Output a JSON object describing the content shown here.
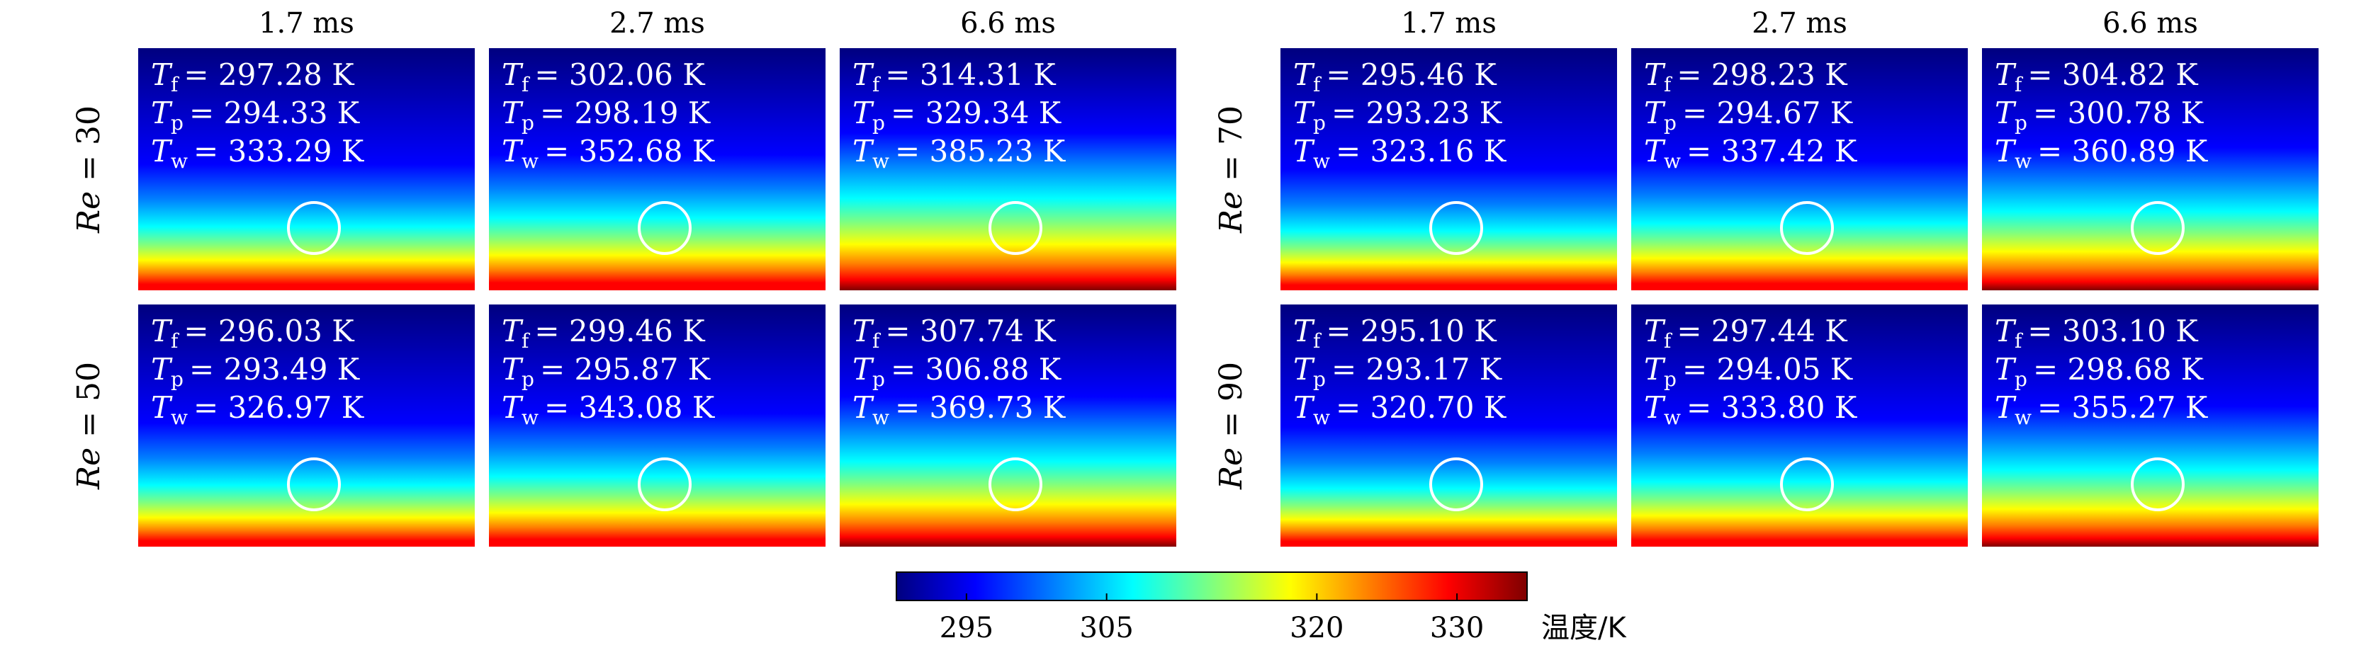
{
  "colors": {
    "jet": [
      "#00007f",
      "#0000ff",
      "#007fff",
      "#00ffff",
      "#7fff7f",
      "#ffff00",
      "#ff7f00",
      "#ff0000",
      "#7f0000"
    ]
  },
  "groups": [
    {
      "times": [
        "1.7 ms",
        "2.7 ms",
        "6.6 ms"
      ],
      "rows": [
        {
          "re_symbol": "Re",
          "re_eq": " = 30",
          "panels": [
            {
              "Tf": "= 297.28 K",
              "Tp": "= 294.33 K",
              "Tw": "= 333.29 K",
              "intensity": 0.35
            },
            {
              "Tf": "= 302.06 K",
              "Tp": "= 298.19 K",
              "Tw": "= 352.68 K",
              "intensity": 0.55
            },
            {
              "Tf": "= 314.31 K",
              "Tp": "= 329.34 K",
              "Tw": "= 385.23 K",
              "intensity": 1.0
            }
          ]
        },
        {
          "re_symbol": "Re",
          "re_eq": " = 50",
          "panels": [
            {
              "Tf": "= 296.03 K",
              "Tp": "= 293.49 K",
              "Tw": "= 326.97 K",
              "intensity": 0.3
            },
            {
              "Tf": "= 299.46 K",
              "Tp": "= 295.87 K",
              "Tw": "= 343.08 K",
              "intensity": 0.5
            },
            {
              "Tf": "= 307.74 K",
              "Tp": "= 306.88 K",
              "Tw": "= 369.73 K",
              "intensity": 0.85
            }
          ]
        }
      ]
    },
    {
      "times": [
        "1.7 ms",
        "2.7 ms",
        "6.6 ms"
      ],
      "rows": [
        {
          "re_symbol": "Re",
          "re_eq": " = 70",
          "panels": [
            {
              "Tf": "= 295.46 K",
              "Tp": "= 293.23 K",
              "Tw": "= 323.16 K",
              "intensity": 0.25
            },
            {
              "Tf": "= 298.23 K",
              "Tp": "= 294.67 K",
              "Tw": "= 337.42 K",
              "intensity": 0.42
            },
            {
              "Tf": "= 304.82 K",
              "Tp": "= 300.78 K",
              "Tw": "= 360.89 K",
              "intensity": 0.7
            }
          ]
        },
        {
          "re_symbol": "Re",
          "re_eq": " = 90",
          "panels": [
            {
              "Tf": "= 295.10 K",
              "Tp": "= 293.17 K",
              "Tw": "= 320.70 K",
              "intensity": 0.22
            },
            {
              "Tf": "= 297.44 K",
              "Tp": "= 294.05 K",
              "Tw": "= 333.80 K",
              "intensity": 0.38
            },
            {
              "Tf": "= 303.10 K",
              "Tp": "= 298.68 K",
              "Tw": "= 355.27 K",
              "intensity": 0.65
            }
          ]
        }
      ]
    }
  ],
  "symbols": {
    "T": "T",
    "f": "f",
    "p": "p",
    "w": "w"
  },
  "colorbar": {
    "min": 290,
    "max": 335,
    "ticks": [
      {
        "value": 295,
        "label": "295"
      },
      {
        "value": 305,
        "label": "305"
      },
      {
        "value": 320,
        "label": "320"
      },
      {
        "value": 330,
        "label": "330"
      }
    ],
    "title": "温度/K"
  }
}
